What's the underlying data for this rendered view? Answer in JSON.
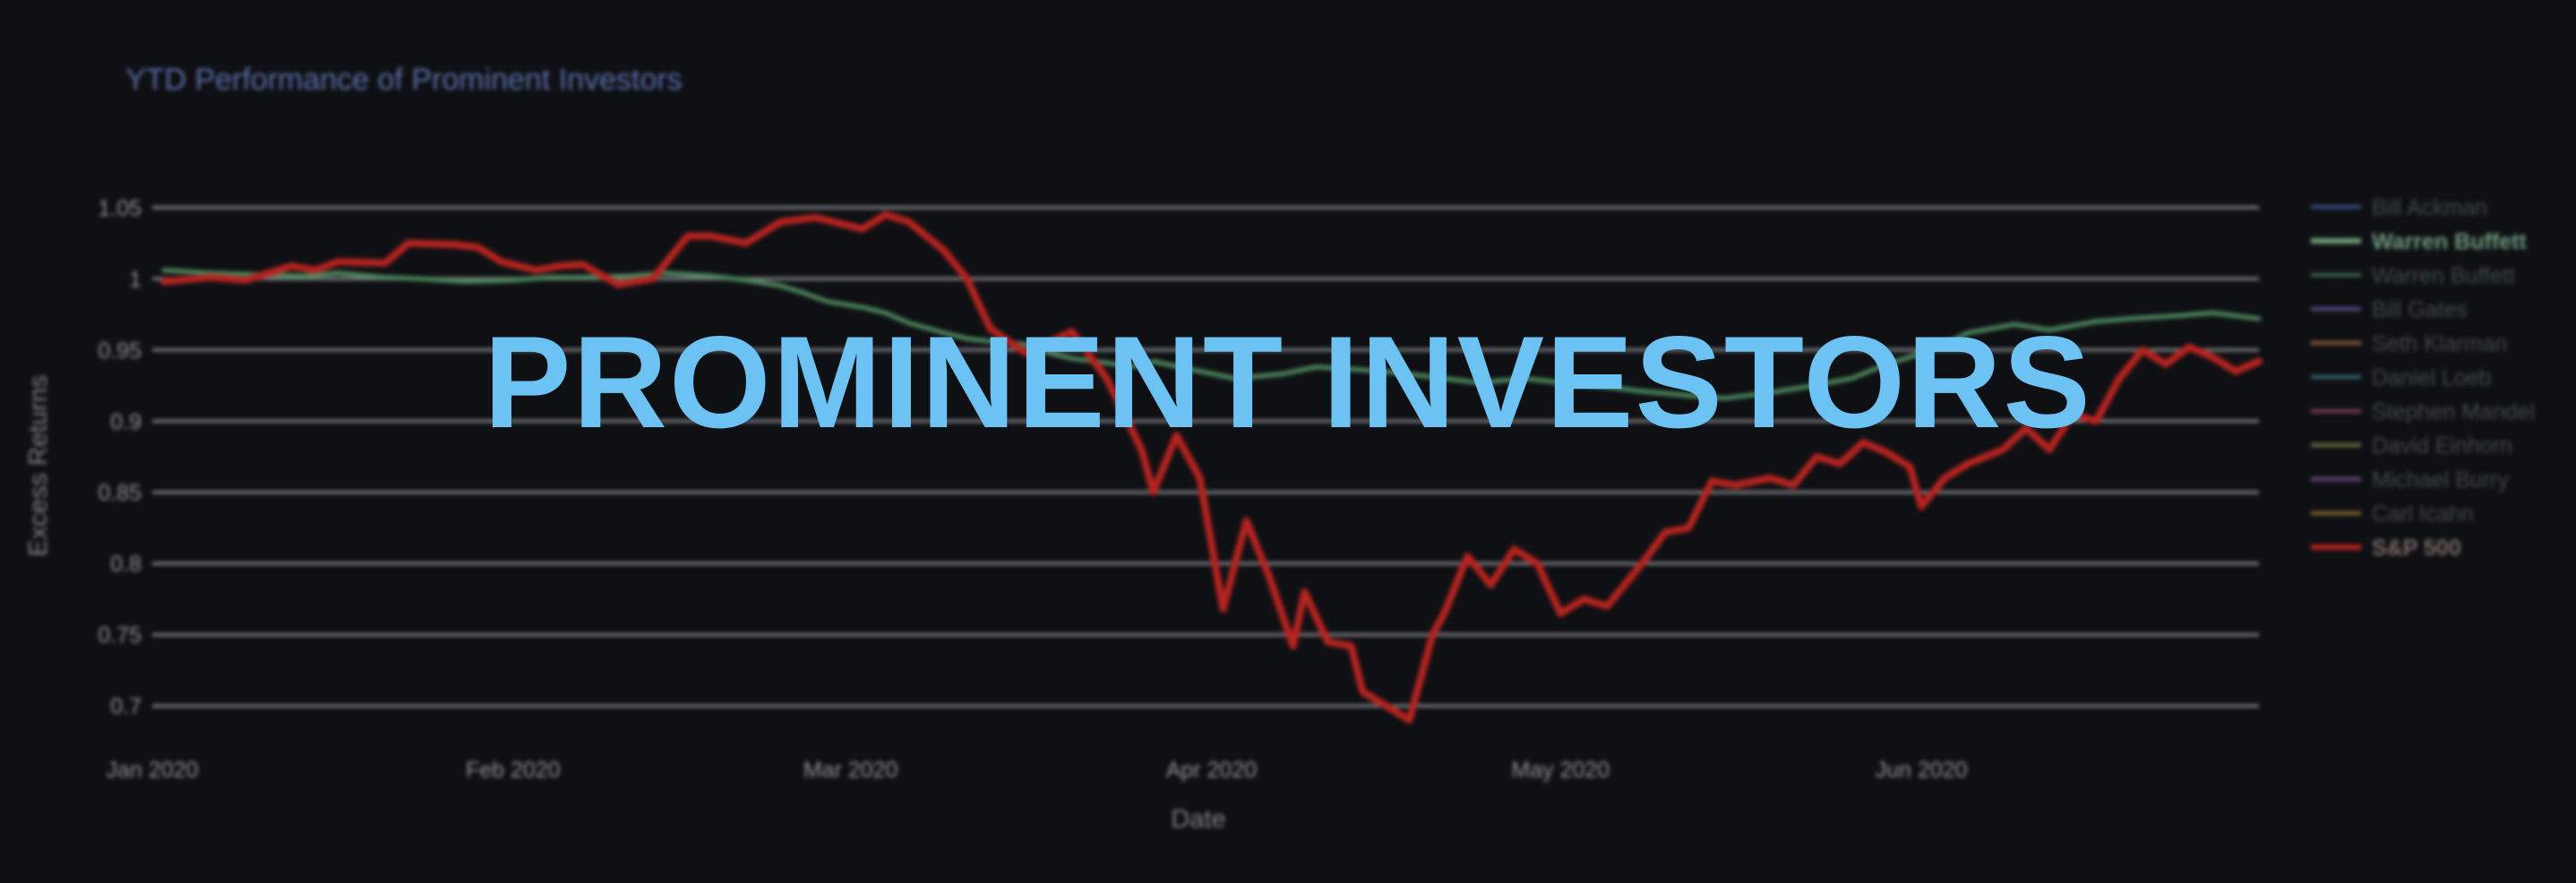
{
  "banner": {
    "text": "PROMINENT INVESTORS",
    "color": "#6cc2f2"
  },
  "background_color": "#0f1014",
  "chart_data": {
    "type": "line",
    "title": "YTD Performance of Prominent Investors",
    "xlabel": "Date",
    "ylabel": "Excess Returns",
    "ylim": [
      0.68,
      1.07
    ],
    "xlim": [
      "2020-01-01",
      "2020-06-30"
    ],
    "yticks": [
      {
        "value": 0.7,
        "label": "0.7"
      },
      {
        "value": 0.75,
        "label": "0.75"
      },
      {
        "value": 0.8,
        "label": "0.8"
      },
      {
        "value": 0.85,
        "label": "0.85"
      },
      {
        "value": 0.9,
        "label": "0.9"
      },
      {
        "value": 0.95,
        "label": "0.95"
      },
      {
        "value": 1.0,
        "label": "1"
      },
      {
        "value": 1.05,
        "label": "1.05"
      }
    ],
    "xticks": [
      {
        "date": "2020-01-01",
        "label": "Jan 2020"
      },
      {
        "date": "2020-02-01",
        "label": "Feb 2020"
      },
      {
        "date": "2020-03-01",
        "label": "Mar 2020"
      },
      {
        "date": "2020-04-01",
        "label": "Apr 2020"
      },
      {
        "date": "2020-05-01",
        "label": "May 2020"
      },
      {
        "date": "2020-06-01",
        "label": "Jun 2020"
      }
    ],
    "grid": true,
    "legend_position": "right",
    "legend": [
      {
        "name": "Bill Ackman",
        "color": "#3b4f86",
        "highlight": false
      },
      {
        "name": "Warren Buffett",
        "color": "#6fa07a",
        "highlight": true
      },
      {
        "name": "Warren Buffett",
        "color": "#3e6a52",
        "highlight": false
      },
      {
        "name": "Bill Gates",
        "color": "#5a4a86",
        "highlight": false
      },
      {
        "name": "Seth Klarman",
        "color": "#8a5a3a",
        "highlight": false
      },
      {
        "name": "Daniel Loeb",
        "color": "#356470",
        "highlight": false
      },
      {
        "name": "Stephen Mandel",
        "color": "#7a3f52",
        "highlight": false
      },
      {
        "name": "David Einhorn",
        "color": "#6f723f",
        "highlight": false
      },
      {
        "name": "Michael Burry",
        "color": "#6a4a7a",
        "highlight": false
      },
      {
        "name": "Carl Icahn",
        "color": "#86682f",
        "highlight": false
      },
      {
        "name": "S&P 500",
        "color": "#b5231f",
        "highlight": true
      }
    ],
    "series": [
      {
        "name": "Warren Buffett",
        "color": "#4e8a5e",
        "points": [
          [
            "2020-01-02",
            1.006
          ],
          [
            "2020-01-06",
            1.004
          ],
          [
            "2020-01-10",
            1.003
          ],
          [
            "2020-01-14",
            1.002
          ],
          [
            "2020-01-17",
            1.004
          ],
          [
            "2020-01-21",
            1.001
          ],
          [
            "2020-01-24",
            1.0
          ],
          [
            "2020-01-28",
            0.998
          ],
          [
            "2020-02-01",
            0.999
          ],
          [
            "2020-02-04",
            1.001
          ],
          [
            "2020-02-07",
            1.001
          ],
          [
            "2020-02-11",
            1.002
          ],
          [
            "2020-02-14",
            1.004
          ],
          [
            "2020-02-18",
            1.002
          ],
          [
            "2020-02-21",
            0.999
          ],
          [
            "2020-02-24",
            0.995
          ],
          [
            "2020-02-26",
            0.99
          ],
          [
            "2020-02-28",
            0.984
          ],
          [
            "2020-03-02",
            0.98
          ],
          [
            "2020-03-04",
            0.976
          ],
          [
            "2020-03-06",
            0.969
          ],
          [
            "2020-03-09",
            0.962
          ],
          [
            "2020-03-11",
            0.958
          ],
          [
            "2020-03-13",
            0.956
          ],
          [
            "2020-03-16",
            0.954
          ],
          [
            "2020-03-18",
            0.948
          ],
          [
            "2020-03-20",
            0.944
          ],
          [
            "2020-03-23",
            0.941
          ],
          [
            "2020-03-25",
            0.938
          ],
          [
            "2020-03-27",
            0.942
          ],
          [
            "2020-03-31",
            0.935
          ],
          [
            "2020-04-03",
            0.93
          ],
          [
            "2020-04-07",
            0.933
          ],
          [
            "2020-04-10",
            0.938
          ],
          [
            "2020-04-14",
            0.936
          ],
          [
            "2020-04-17",
            0.934
          ],
          [
            "2020-04-21",
            0.93
          ],
          [
            "2020-04-24",
            0.927
          ],
          [
            "2020-04-28",
            0.93
          ],
          [
            "2020-05-01",
            0.927
          ],
          [
            "2020-05-05",
            0.924
          ],
          [
            "2020-05-08",
            0.921
          ],
          [
            "2020-05-12",
            0.918
          ],
          [
            "2020-05-15",
            0.916
          ],
          [
            "2020-05-19",
            0.92
          ],
          [
            "2020-05-22",
            0.924
          ],
          [
            "2020-05-26",
            0.93
          ],
          [
            "2020-05-29",
            0.94
          ],
          [
            "2020-06-02",
            0.95
          ],
          [
            "2020-06-05",
            0.962
          ],
          [
            "2020-06-09",
            0.968
          ],
          [
            "2020-06-12",
            0.964
          ],
          [
            "2020-06-16",
            0.97
          ],
          [
            "2020-06-19",
            0.972
          ],
          [
            "2020-06-23",
            0.974
          ],
          [
            "2020-06-26",
            0.976
          ],
          [
            "2020-06-30",
            0.972
          ]
        ]
      },
      {
        "name": "S&P 500",
        "color": "#b5231f",
        "points": [
          [
            "2020-01-02",
            0.998
          ],
          [
            "2020-01-06",
            1.001
          ],
          [
            "2020-01-09",
            0.999
          ],
          [
            "2020-01-13",
            1.009
          ],
          [
            "2020-01-15",
            1.006
          ],
          [
            "2020-01-17",
            1.012
          ],
          [
            "2020-01-21",
            1.011
          ],
          [
            "2020-01-23",
            1.025
          ],
          [
            "2020-01-27",
            1.024
          ],
          [
            "2020-01-29",
            1.022
          ],
          [
            "2020-01-31",
            1.012
          ],
          [
            "2020-02-03",
            1.006
          ],
          [
            "2020-02-05",
            1.009
          ],
          [
            "2020-02-07",
            1.01
          ],
          [
            "2020-02-10",
            0.996
          ],
          [
            "2020-02-13",
            1.0
          ],
          [
            "2020-02-16",
            1.03
          ],
          [
            "2020-02-18",
            1.03
          ],
          [
            "2020-02-21",
            1.025
          ],
          [
            "2020-02-24",
            1.04
          ],
          [
            "2020-02-27",
            1.043
          ],
          [
            "2020-03-02",
            1.035
          ],
          [
            "2020-03-04",
            1.045
          ],
          [
            "2020-03-06",
            1.04
          ],
          [
            "2020-03-09",
            1.02
          ],
          [
            "2020-03-11",
            1.0
          ],
          [
            "2020-03-13",
            0.965
          ],
          [
            "2020-03-16",
            0.948
          ],
          [
            "2020-03-18",
            0.955
          ],
          [
            "2020-03-20",
            0.963
          ],
          [
            "2020-03-23",
            0.93
          ],
          [
            "2020-03-26",
            0.88
          ],
          [
            "2020-03-27",
            0.85
          ],
          [
            "2020-03-29",
            0.89
          ],
          [
            "2020-03-31",
            0.86
          ],
          [
            "2020-04-02",
            0.768
          ],
          [
            "2020-04-04",
            0.83
          ],
          [
            "2020-04-06",
            0.79
          ],
          [
            "2020-04-08",
            0.742
          ],
          [
            "2020-04-09",
            0.78
          ],
          [
            "2020-04-11",
            0.745
          ],
          [
            "2020-04-13",
            0.742
          ],
          [
            "2020-04-14",
            0.71
          ],
          [
            "2020-04-16",
            0.7
          ],
          [
            "2020-04-18",
            0.69
          ],
          [
            "2020-04-20",
            0.75
          ],
          [
            "2020-04-21",
            0.765
          ],
          [
            "2020-04-23",
            0.805
          ],
          [
            "2020-04-25",
            0.785
          ],
          [
            "2020-04-27",
            0.81
          ],
          [
            "2020-04-29",
            0.8
          ],
          [
            "2020-05-01",
            0.765
          ],
          [
            "2020-05-03",
            0.775
          ],
          [
            "2020-05-05",
            0.77
          ],
          [
            "2020-05-08",
            0.8
          ],
          [
            "2020-05-10",
            0.822
          ],
          [
            "2020-05-12",
            0.825
          ],
          [
            "2020-05-14",
            0.858
          ],
          [
            "2020-05-16",
            0.855
          ],
          [
            "2020-05-19",
            0.86
          ],
          [
            "2020-05-21",
            0.855
          ],
          [
            "2020-05-23",
            0.875
          ],
          [
            "2020-05-25",
            0.87
          ],
          [
            "2020-05-27",
            0.885
          ],
          [
            "2020-05-29",
            0.878
          ],
          [
            "2020-05-31",
            0.868
          ],
          [
            "2020-06-01",
            0.84
          ],
          [
            "2020-06-03",
            0.86
          ],
          [
            "2020-06-05",
            0.87
          ],
          [
            "2020-06-08",
            0.88
          ],
          [
            "2020-06-10",
            0.895
          ],
          [
            "2020-06-12",
            0.88
          ],
          [
            "2020-06-14",
            0.905
          ],
          [
            "2020-06-16",
            0.9
          ],
          [
            "2020-06-18",
            0.93
          ],
          [
            "2020-06-20",
            0.95
          ],
          [
            "2020-06-22",
            0.94
          ],
          [
            "2020-06-24",
            0.952
          ],
          [
            "2020-06-26",
            0.945
          ],
          [
            "2020-06-28",
            0.935
          ],
          [
            "2020-06-30",
            0.942
          ]
        ]
      }
    ]
  }
}
